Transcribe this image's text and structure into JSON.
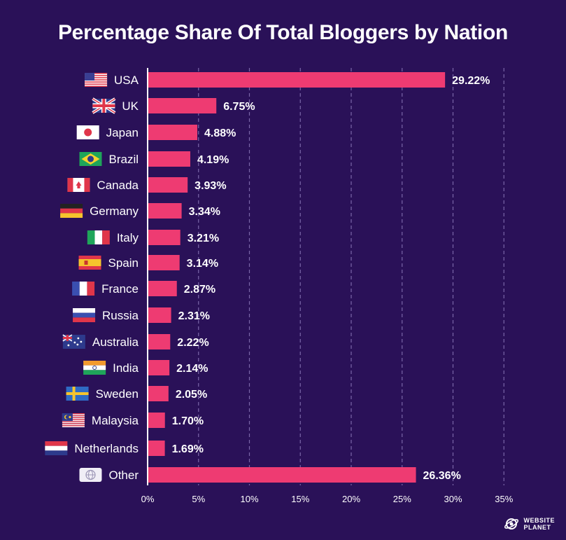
{
  "colors": {
    "background": "#2a1158",
    "bar": "#ee3b72",
    "grid": "#7a66a8",
    "text": "#ffffff"
  },
  "chart_data": {
    "type": "bar",
    "orientation": "horizontal",
    "title": "Percentage Share Of Total Bloggers by Nation",
    "categories": [
      "USA",
      "UK",
      "Japan",
      "Brazil",
      "Canada",
      "Germany",
      "Italy",
      "Spain",
      "France",
      "Russia",
      "Australia",
      "India",
      "Sweden",
      "Malaysia",
      "Netherlands",
      "Other"
    ],
    "values": [
      29.22,
      6.75,
      4.88,
      4.19,
      3.93,
      3.34,
      3.21,
      3.14,
      2.87,
      2.31,
      2.22,
      2.14,
      2.05,
      1.7,
      1.69,
      26.36
    ],
    "value_labels": [
      "29.22%",
      "6.75%",
      "4.88%",
      "4.19%",
      "3.93%",
      "3.34%",
      "3.21%",
      "3.14%",
      "2.87%",
      "2.31%",
      "2.22%",
      "2.14%",
      "2.05%",
      "1.70%",
      "1.69%",
      "26.36%"
    ],
    "flags": [
      "usa-flag-icon",
      "uk-flag-icon",
      "japan-flag-icon",
      "brazil-flag-icon",
      "canada-flag-icon",
      "germany-flag-icon",
      "italy-flag-icon",
      "spain-flag-icon",
      "france-flag-icon",
      "russia-flag-icon",
      "australia-flag-icon",
      "india-flag-icon",
      "sweden-flag-icon",
      "malaysia-flag-icon",
      "netherlands-flag-icon",
      "globe-icon"
    ],
    "xlim": [
      0,
      35
    ],
    "xticks": [
      0,
      5,
      10,
      15,
      20,
      25,
      30,
      35
    ],
    "xtick_labels": [
      "0%",
      "5%",
      "10%",
      "15%",
      "20%",
      "25%",
      "30%",
      "35%"
    ],
    "grid": true,
    "xlabel": "",
    "ylabel": ""
  },
  "brand": {
    "line1": "WEBSITE",
    "line2": "PLANET",
    "icon": "planet-logo-icon"
  }
}
